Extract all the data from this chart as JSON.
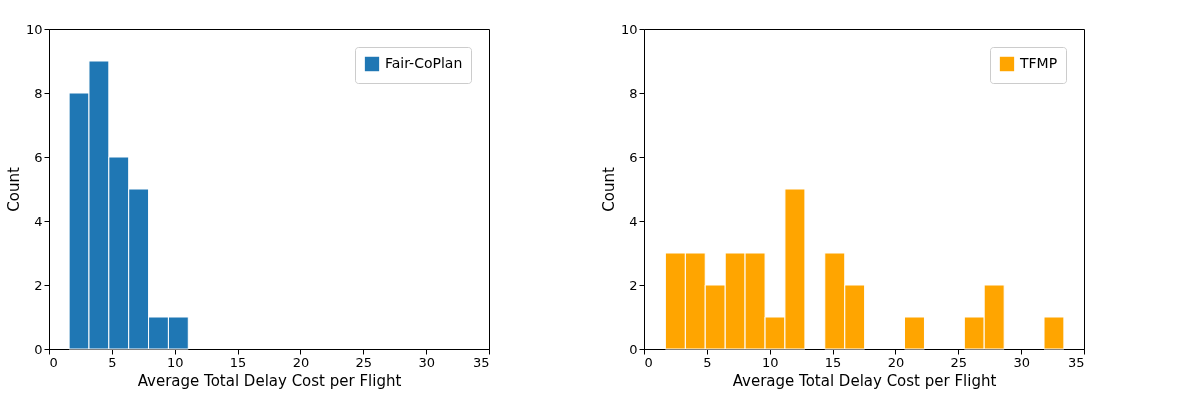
{
  "chart_data": [
    {
      "type": "histogram",
      "xlabel": "Average Total Delay Cost per Flight",
      "ylabel": "Count",
      "bins": [
        1.6,
        3.18,
        4.76,
        6.34,
        7.92,
        9.5,
        11.08
      ],
      "series": [
        {
          "name": "Fair-CoPlan",
          "color": "#1f77b4",
          "values": [
            8,
            9,
            6,
            5,
            1,
            1
          ]
        }
      ],
      "xlim": [
        0,
        35
      ],
      "xticks": [
        0,
        5,
        10,
        15,
        20,
        25,
        30,
        35
      ],
      "ylim": [
        0,
        10
      ],
      "yticks": [
        0,
        2,
        4,
        6,
        8,
        10
      ],
      "grid": false,
      "legend": "top right"
    },
    {
      "type": "histogram",
      "xlabel": "Average Total Delay Cost per Flight",
      "ylabel": "Count",
      "bins": [
        1.7,
        3.29,
        4.87,
        6.46,
        8.04,
        9.63,
        11.21,
        12.8,
        14.38,
        15.97,
        17.55,
        19.14,
        20.72,
        22.31,
        23.89,
        25.48,
        27.06,
        28.65,
        30.23,
        31.82,
        33.4
      ],
      "series": [
        {
          "name": "TFMP",
          "color": "#ffa500",
          "values": [
            3,
            3,
            2,
            3,
            3,
            1,
            5,
            0,
            3,
            2,
            0,
            0,
            1,
            0,
            0,
            1,
            2,
            0,
            0,
            1
          ]
        }
      ],
      "xlim": [
        0,
        35
      ],
      "xticks": [
        0,
        5,
        10,
        15,
        20,
        25,
        30,
        35
      ],
      "ylim": [
        0,
        10
      ],
      "yticks": [
        0,
        2,
        4,
        6,
        8,
        10
      ],
      "grid": false,
      "legend": "top right"
    }
  ]
}
